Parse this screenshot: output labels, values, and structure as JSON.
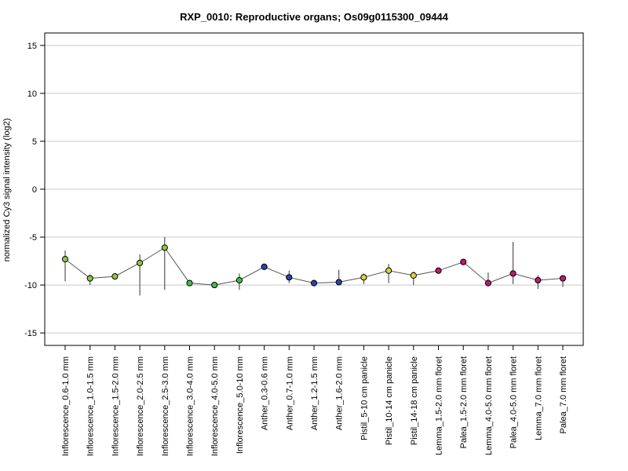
{
  "chart_data": {
    "type": "line",
    "title": "RXP_0010: Reproductive organs; Os09g0115300_09444",
    "xlabel": "",
    "ylabel": "normalized Cy3 signal intensity (log2)",
    "ylim": [
      -16.3,
      16.3
    ],
    "yticks": [
      -15,
      -10,
      -5,
      0,
      5,
      10,
      15
    ],
    "grid": true,
    "categories": [
      "Inflorescence_0.6-1.0 mm",
      "Inflorescence_1.0-1.5 mm",
      "Inflorescence_1.5-2.0 mm",
      "Inflorescence_2.0-2.5 mm",
      "Inflorescence_2.5-3.0 mm",
      "Inflorescence_3.0-4.0 mm",
      "Inflorescence_4.0-5.0 mm",
      "Inflorescence_5.0-10 mm",
      "Anther_0.3-0.6 mm",
      "Anther_0.7-1.0 mm",
      "Anther_1.2-1.5 mm",
      "Anther_1.6-2.0 mm",
      "Pistil_5-10 cm panicle",
      "Pistil_10-14 cm panicle",
      "Pistil_14-18 cm panicle",
      "Lemma_1.5-2.0 mm floret",
      "Palea_1.5-2.0 mm floret",
      "Lemma_4.0-5.0 mm floret",
      "Palea_4.0-5.0 mm floret",
      "Lemma_7.0 mm floret",
      "Palea_7.0 mm floret"
    ],
    "values": [
      -7.3,
      -9.3,
      -9.1,
      -7.7,
      -6.1,
      -9.8,
      -10.0,
      -9.5,
      -8.1,
      -9.2,
      -9.8,
      -9.7,
      -9.2,
      -8.5,
      -9.0,
      -8.5,
      -7.6,
      -9.8,
      -8.8,
      -9.5,
      -9.3
    ],
    "error_upper": [
      -6.4,
      -8.9,
      -8.8,
      -6.8,
      -5.0,
      -9.7,
      -9.9,
      -8.8,
      -8.0,
      -8.5,
      -9.7,
      -8.4,
      -8.8,
      -7.8,
      -8.6,
      -8.3,
      -7.5,
      -8.7,
      -5.5,
      -9.0,
      -9.0
    ],
    "error_lower": [
      -9.6,
      -10.0,
      -9.4,
      -11.1,
      -10.5,
      -9.9,
      -10.1,
      -10.5,
      -8.2,
      -9.8,
      -9.9,
      -10.0,
      -9.9,
      -9.8,
      -10.0,
      -8.7,
      -7.7,
      -9.9,
      -9.9,
      -10.4,
      -10.2
    ],
    "point_colors": [
      "#8bc83f",
      "#8bc83f",
      "#8bc83f",
      "#8bc83f",
      "#8bc83f",
      "#3fbf3f",
      "#3fbf3f",
      "#3fbf3f",
      "#2845a6",
      "#2845a6",
      "#2845a6",
      "#2845a6",
      "#e0d23a",
      "#e0d23a",
      "#e0d23a",
      "#c0186f",
      "#c0186f",
      "#c0186f",
      "#c0186f",
      "#c0186f",
      "#c0186f"
    ],
    "line_color": "#555555",
    "grid_color": "#c8c8c8"
  }
}
